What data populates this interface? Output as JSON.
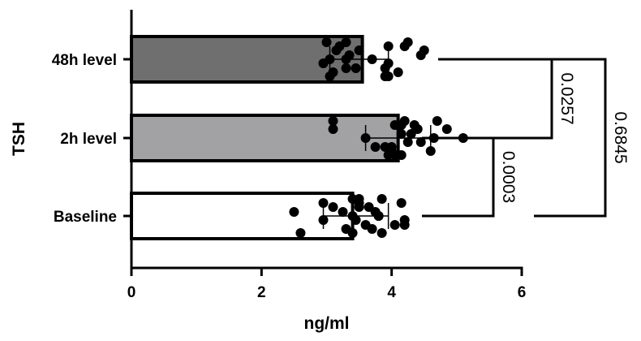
{
  "chart_data": {
    "type": "bar",
    "orientation": "horizontal",
    "title": "",
    "xlabel": "ng/ml",
    "ylabel": "TSH",
    "xlim": [
      0,
      6
    ],
    "xticks": [
      0,
      2,
      4,
      6
    ],
    "categories": [
      "48h level",
      "2h level",
      "Baseline"
    ],
    "values": [
      3.55,
      4.1,
      3.4
    ],
    "error": [
      {
        "low": 3.05,
        "high": 3.95
      },
      {
        "low": 3.6,
        "high": 4.6
      },
      {
        "low": 2.95,
        "high": 3.95
      }
    ],
    "bar_colors": [
      "#6f6f6f",
      "#a2a2a5",
      "#ffffff"
    ],
    "points": [
      [
        3.0,
        3.15,
        3.3,
        3.45,
        3.95,
        4.2,
        4.45,
        2.95,
        3.1,
        3.3,
        3.5,
        3.7,
        3.9,
        3.05,
        3.2,
        3.35,
        3.95,
        4.1,
        4.25,
        4.5,
        3.05,
        3.3,
        3.9,
        3.95
      ],
      [
        3.1,
        3.1,
        3.6,
        3.75,
        3.95,
        4.05,
        4.15,
        4.25,
        4.0,
        4.2,
        4.4,
        4.65,
        3.9,
        4.05,
        4.15,
        4.3,
        4.45,
        4.6,
        4.7,
        4.85,
        5.1,
        4.0,
        4.15,
        4.35
      ],
      [
        3.4,
        3.5,
        3.8,
        4.2,
        2.6,
        2.95,
        3.25,
        3.45,
        3.7,
        3.85,
        3.1,
        3.4,
        3.6,
        3.85,
        4.15,
        2.5,
        2.95,
        3.3,
        3.5,
        3.65,
        3.8,
        4.05,
        3.4,
        3.5,
        3.75,
        4.2
      ]
    ],
    "comparisons": [
      {
        "from": "48h level",
        "to": "2h level",
        "p": "0.0257"
      },
      {
        "from": "2h level",
        "to": "Baseline",
        "p": "0.0003"
      },
      {
        "from": "48h level",
        "to": "Baseline",
        "p": "0.6845"
      }
    ]
  }
}
